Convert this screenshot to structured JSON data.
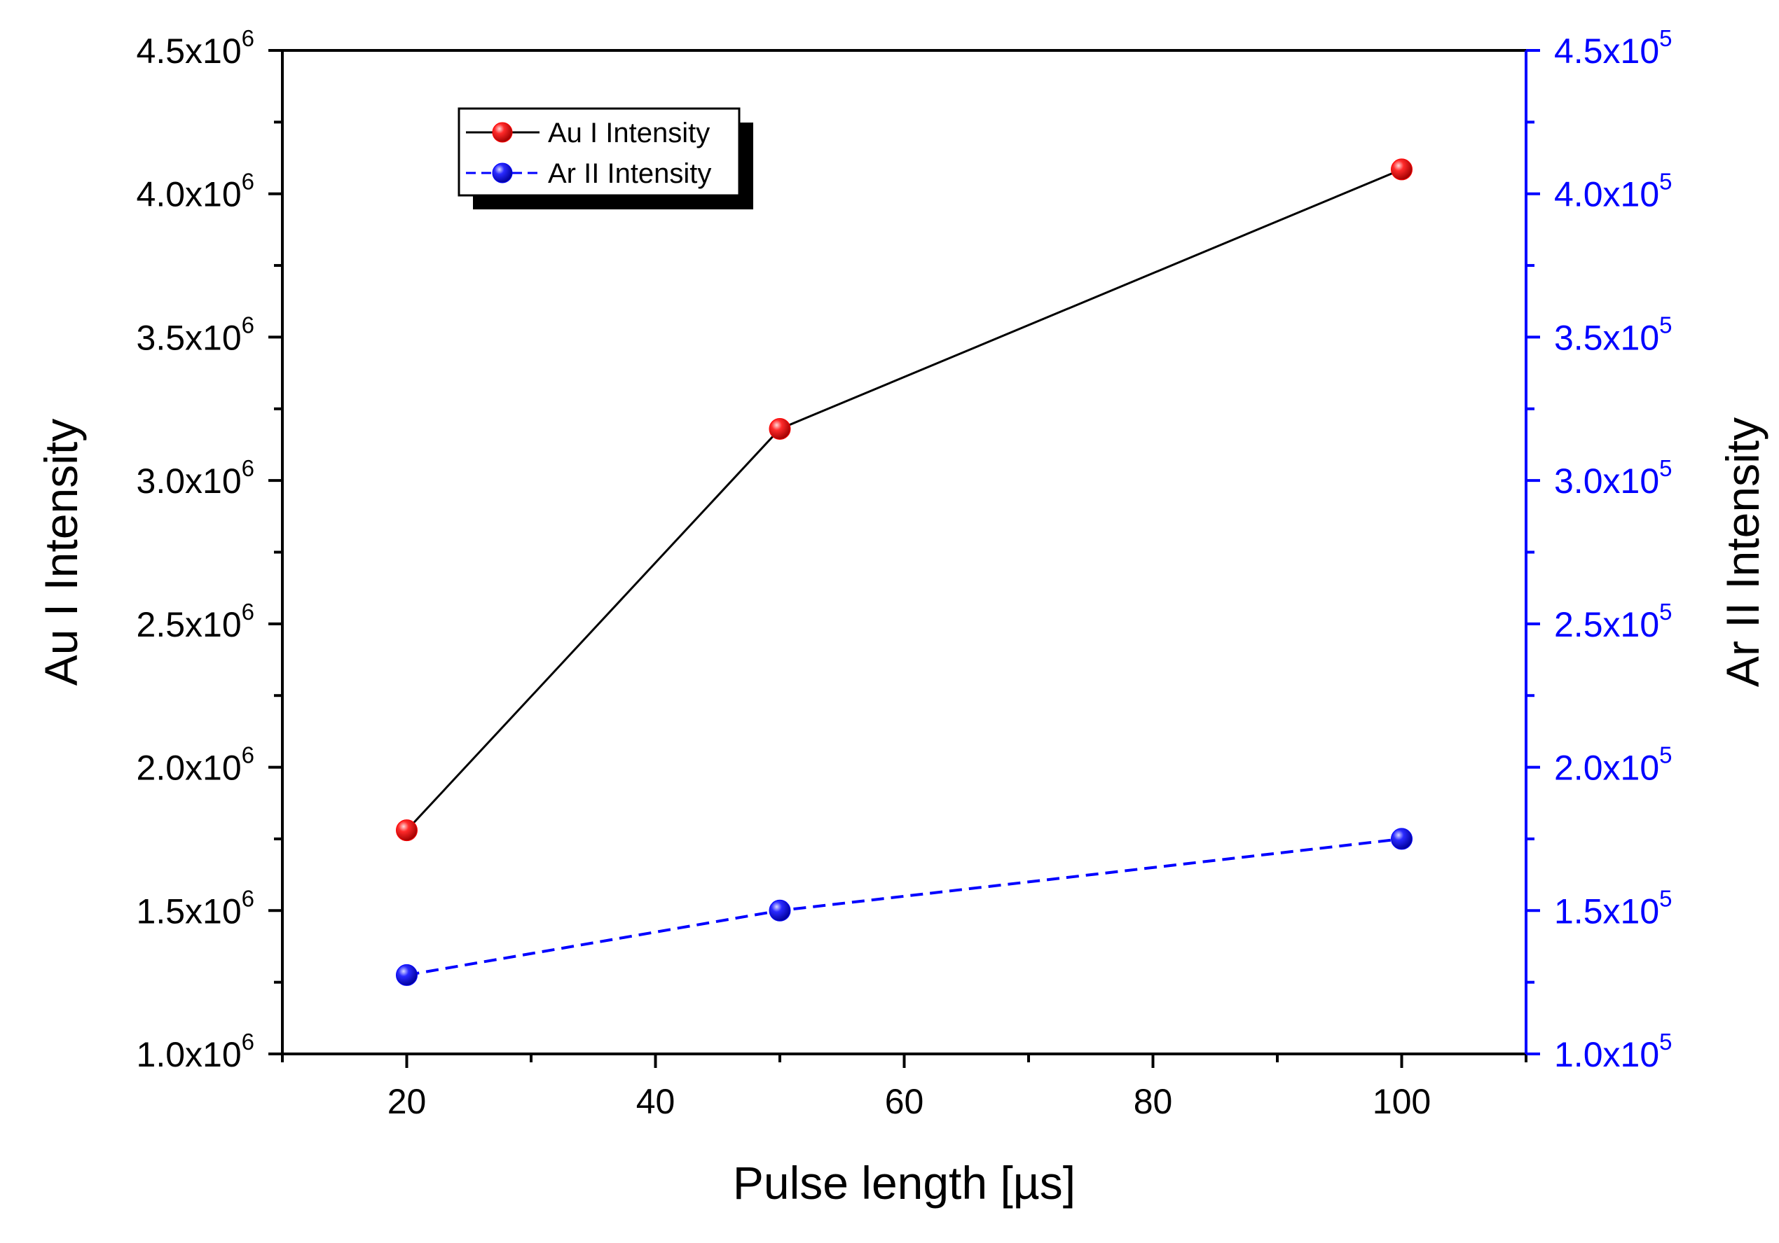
{
  "chart_data": {
    "type": "line",
    "x_axis": {
      "label": "Pulse length [µs]",
      "range": [
        10,
        110
      ],
      "ticks": [
        20,
        40,
        60,
        80,
        100
      ],
      "minor_step": 10
    },
    "y_left_axis": {
      "label": "Au I Intensity",
      "range": [
        1000000,
        4500000
      ],
      "ticks": [
        1000000,
        1500000,
        2000000,
        2500000,
        3000000,
        3500000,
        4000000,
        4500000
      ],
      "tick_labels": [
        {
          "mantissa": "1.0x10",
          "exp": "6"
        },
        {
          "mantissa": "1.5x10",
          "exp": "6"
        },
        {
          "mantissa": "2.0x10",
          "exp": "6"
        },
        {
          "mantissa": "2.5x10",
          "exp": "6"
        },
        {
          "mantissa": "3.0x10",
          "exp": "6"
        },
        {
          "mantissa": "3.5x10",
          "exp": "6"
        },
        {
          "mantissa": "4.0x10",
          "exp": "6"
        },
        {
          "mantissa": "4.5x10",
          "exp": "6"
        }
      ],
      "color": "#000000"
    },
    "y_right_axis": {
      "label": "Ar II Intensity",
      "range": [
        100000,
        450000
      ],
      "ticks": [
        100000,
        150000,
        200000,
        250000,
        300000,
        350000,
        400000,
        450000
      ],
      "tick_labels": [
        {
          "mantissa": "1.0x10",
          "exp": "5"
        },
        {
          "mantissa": "1.5x10",
          "exp": "5"
        },
        {
          "mantissa": "2.0x10",
          "exp": "5"
        },
        {
          "mantissa": "2.5x10",
          "exp": "5"
        },
        {
          "mantissa": "3.0x10",
          "exp": "5"
        },
        {
          "mantissa": "3.5x10",
          "exp": "5"
        },
        {
          "mantissa": "4.0x10",
          "exp": "5"
        },
        {
          "mantissa": "4.5x10",
          "exp": "5"
        }
      ],
      "color": "#0000ff"
    },
    "series": [
      {
        "name": "Au I Intensity",
        "axis": "left",
        "x": [
          20,
          50,
          100
        ],
        "y": [
          1780000,
          3180000,
          4085000
        ],
        "line_color": "#000000",
        "marker_color": "#ff0000",
        "line_style": "solid"
      },
      {
        "name": "Ar II Intensity",
        "axis": "right",
        "x": [
          20,
          50,
          100
        ],
        "y": [
          127500,
          150000,
          175000
        ],
        "line_color": "#0000ff",
        "marker_color": "#0000ff",
        "line_style": "dashed"
      }
    ],
    "legend": {
      "position": "top-left",
      "entries": [
        "Au I Intensity",
        "Ar II Intensity"
      ]
    }
  }
}
